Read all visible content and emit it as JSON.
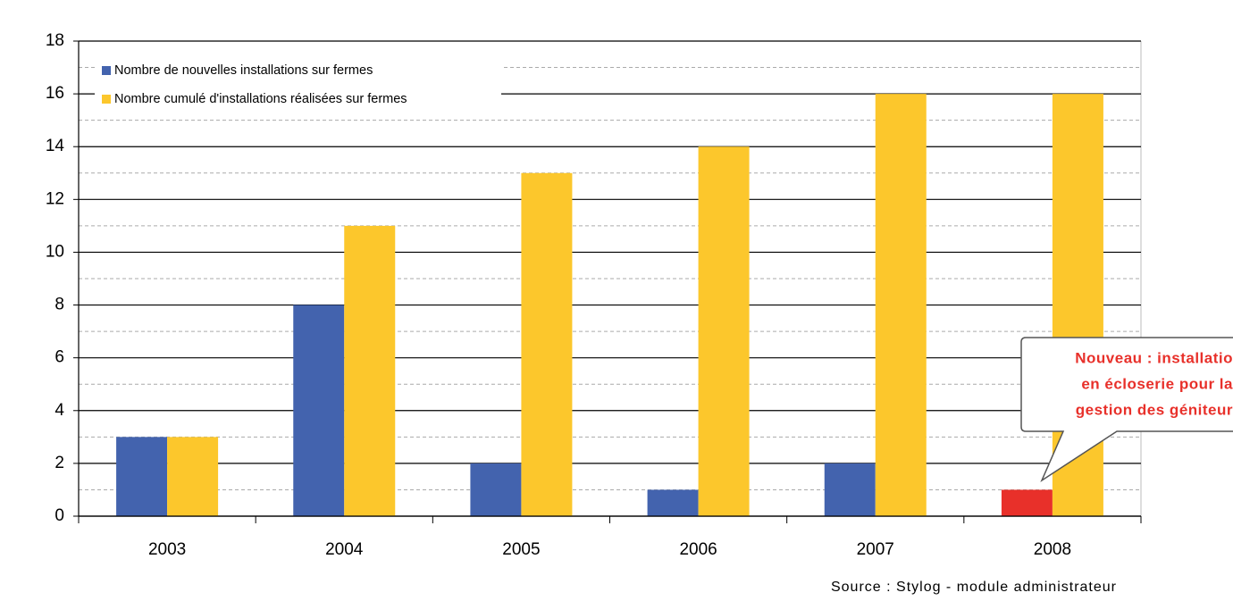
{
  "chart_data": {
    "type": "bar",
    "categories": [
      "2003",
      "2004",
      "2005",
      "2006",
      "2007",
      "2008"
    ],
    "series": [
      {
        "name": "Nombre de nouvelles installations sur fermes",
        "color": "#4363ae",
        "values": [
          3,
          8,
          2,
          1,
          2,
          1
        ],
        "colors": [
          "#4363ae",
          "#4363ae",
          "#4363ae",
          "#4363ae",
          "#4363ae",
          "#e8302a"
        ]
      },
      {
        "name": "Nombre cumulé d'installations réalisées sur fermes",
        "color": "#fcc72c",
        "values": [
          3,
          11,
          13,
          14,
          16,
          16
        ]
      }
    ],
    "ylim": [
      0,
      18
    ],
    "yticks": [
      0,
      2,
      4,
      6,
      8,
      10,
      12,
      14,
      16,
      18
    ],
    "yticks_minor": [
      1,
      3,
      5,
      7,
      9,
      11,
      13,
      15,
      17
    ],
    "grid": true,
    "legend": "top-left",
    "annotation": {
      "lines": [
        "Nouveau : installatio",
        "en écloserie pour la",
        "gestion des géniteur"
      ],
      "color": "#e8302a"
    },
    "source": "Source : Stylog - module administrateur"
  }
}
